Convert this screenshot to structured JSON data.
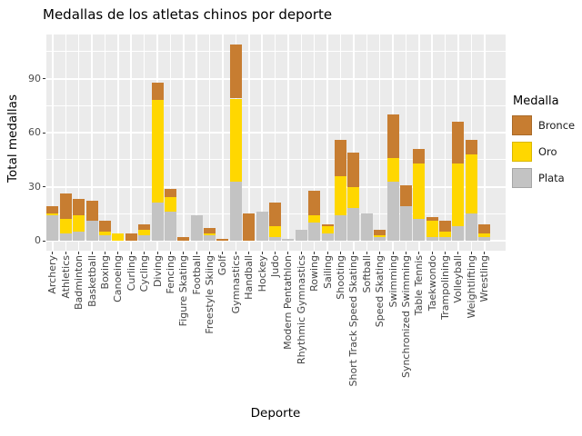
{
  "title": "Medallas de los atletas chinos por deporte",
  "colors": {
    "panel_background": "#EBEBEB",
    "gridline": "#FFFFFF",
    "axis_text": "#4D4D4D",
    "tick_mark": "#333333",
    "bronce": "#C77D31",
    "oro": "#FFD700",
    "plata": "#C3C3C3"
  },
  "chart_data": {
    "type": "bar",
    "stacked": true,
    "title": "Medallas de los atletas chinos por deporte",
    "xlabel": "Deporte",
    "ylabel": "Total medallas",
    "ylim": [
      0,
      114
    ],
    "yticks": [
      0,
      30,
      60,
      90
    ],
    "yticks_minor": [
      15,
      45,
      75,
      105
    ],
    "grid": true,
    "legend_title": "Medalla",
    "legend_position": "right",
    "legend_order": [
      "Bronce",
      "Oro",
      "Plata"
    ],
    "stack_order_bottom_to_top": [
      "Plata",
      "Oro",
      "Bronce"
    ],
    "categories": [
      "Archery",
      "Athletics",
      "Badminton",
      "Basketball",
      "Boxing",
      "Canoeing",
      "Curling",
      "Cycling",
      "Diving",
      "Fencing",
      "Figure Skating",
      "Football",
      "Freestyle Skiing",
      "Golf",
      "Gymnastics",
      "Handball",
      "Hockey",
      "Judo",
      "Modern Pentathlon",
      "Rhythmic Gymnastics",
      "Rowing",
      "Sailing",
      "Shooting",
      "Short Track Speed Skating",
      "Softball",
      "Speed Skating",
      "Swimming",
      "Synchronized Swimming",
      "Table Tennis",
      "Taekwondo",
      "Trampolining",
      "Volleyball",
      "Weightlifting",
      "Wrestling"
    ],
    "series": [
      {
        "name": "Plata",
        "color": "#C3C3C3",
        "values": [
          14,
          4,
          5,
          11,
          3,
          0,
          0,
          3,
          21,
          16,
          0,
          14,
          3,
          0,
          33,
          0,
          16,
          2,
          1,
          6,
          10,
          4,
          14,
          18,
          15,
          2,
          33,
          19,
          12,
          2,
          2,
          8,
          15,
          2
        ]
      },
      {
        "name": "Oro",
        "color": "#FFD700",
        "values": [
          1,
          8,
          9,
          0,
          2,
          4,
          0,
          3,
          57,
          8,
          0,
          0,
          1,
          0,
          46,
          0,
          0,
          6,
          0,
          0,
          4,
          4,
          22,
          12,
          0,
          1,
          13,
          0,
          31,
          9,
          3,
          35,
          33,
          2
        ]
      },
      {
        "name": "Bronce",
        "color": "#C77D31",
        "values": [
          4,
          14,
          9,
          11,
          6,
          0,
          4,
          3,
          10,
          5,
          2,
          0,
          3,
          1,
          30,
          15,
          0,
          13,
          0,
          0,
          14,
          1,
          20,
          19,
          0,
          3,
          24,
          12,
          8,
          2,
          6,
          23,
          8,
          5
        ]
      }
    ]
  }
}
